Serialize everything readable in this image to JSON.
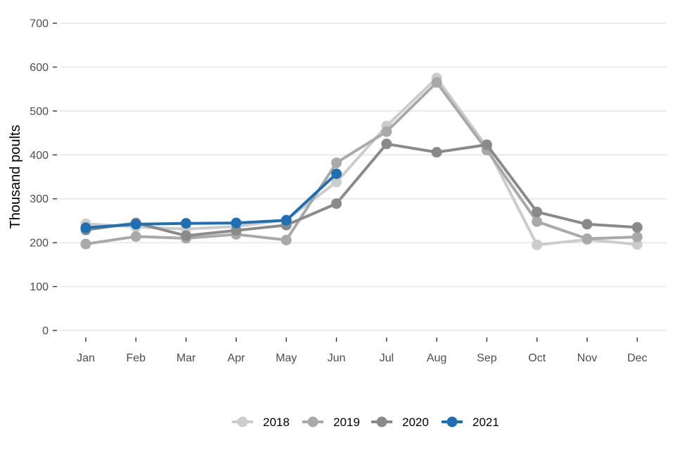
{
  "chart_data": {
    "type": "line",
    "title": "",
    "xlabel": "",
    "ylabel": "Thousand poults",
    "ylim": [
      0,
      700
    ],
    "yticks": [
      0,
      100,
      200,
      300,
      400,
      500,
      600,
      700
    ],
    "categories": [
      "Jan",
      "Feb",
      "Mar",
      "Apr",
      "May",
      "Jun",
      "Jul",
      "Aug",
      "Sep",
      "Oct",
      "Nov",
      "Dec"
    ],
    "grid": "horizontal",
    "legend_position": "bottom",
    "series": [
      {
        "name": "2018",
        "color": "#cccccc",
        "values": [
          243,
          236,
          231,
          237,
          252,
          338,
          466,
          575,
          418,
          195,
          207,
          196
        ]
      },
      {
        "name": "2019",
        "color": "#a9a9a9",
        "values": [
          197,
          214,
          210,
          219,
          206,
          382,
          453,
          565,
          411,
          248,
          209,
          213
        ]
      },
      {
        "name": "2020",
        "color": "#8b8a8a",
        "values": [
          229,
          245,
          216,
          228,
          240,
          289,
          425,
          406,
          423,
          270,
          242,
          235
        ]
      },
      {
        "name": "2021",
        "color": "#1f6fb4",
        "values": [
          234,
          242,
          244,
          245,
          251,
          357,
          null,
          null,
          null,
          null,
          null,
          null
        ]
      }
    ]
  }
}
